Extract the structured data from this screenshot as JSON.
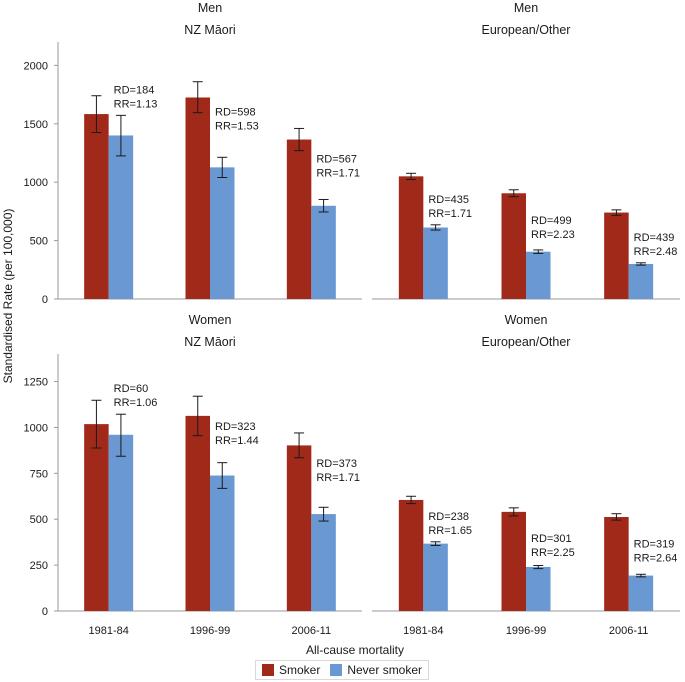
{
  "chart_data": [
    {
      "type": "bar",
      "title": "Men",
      "subtitle": "NZ Māori",
      "categories": [
        "1981-84",
        "1996-99",
        "2006-11"
      ],
      "ylim": [
        0,
        2200
      ],
      "yticks": [
        0,
        500,
        1000,
        1500,
        2000
      ],
      "series": [
        {
          "name": "Smoker",
          "values": [
            1583,
            1725,
            1365
          ],
          "err_low": [
            1425,
            1595,
            1270
          ],
          "err_high": [
            1740,
            1860,
            1460
          ]
        },
        {
          "name": "Never smoker",
          "values": [
            1400,
            1127,
            798
          ],
          "err_low": [
            1225,
            1040,
            745
          ],
          "err_high": [
            1572,
            1213,
            852
          ]
        }
      ],
      "annotations": [
        {
          "rd": "RD=184",
          "rr": "RR=1.13"
        },
        {
          "rd": "RD=598",
          "rr": "RR=1.53"
        },
        {
          "rd": "RD=567",
          "rr": "RR=1.71"
        }
      ]
    },
    {
      "type": "bar",
      "title": "Men",
      "subtitle": "European/Other",
      "categories": [
        "1981-84",
        "1996-99",
        "2006-11"
      ],
      "ylim": [
        0,
        2200
      ],
      "series": [
        {
          "name": "Smoker",
          "values": [
            1050,
            905,
            740
          ],
          "err_low": [
            1023,
            876,
            716
          ],
          "err_high": [
            1076,
            935,
            763
          ]
        },
        {
          "name": "Never smoker",
          "values": [
            612,
            405,
            300
          ],
          "err_low": [
            590,
            390,
            290
          ],
          "err_high": [
            635,
            420,
            310
          ]
        }
      ],
      "annotations": [
        {
          "rd": "RD=435",
          "rr": "RR=1.71"
        },
        {
          "rd": "RD=499",
          "rr": "RR=2.23"
        },
        {
          "rd": "RD=439",
          "rr": "RR=2.48"
        }
      ]
    },
    {
      "type": "bar",
      "title": "Women",
      "subtitle": "NZ Māori",
      "categories": [
        "1981-84",
        "1996-99",
        "2006-11"
      ],
      "ylim": [
        0,
        1400
      ],
      "yticks": [
        0,
        250,
        500,
        750,
        1000,
        1250
      ],
      "series": [
        {
          "name": "Smoker",
          "values": [
            1018,
            1063,
            902
          ],
          "err_low": [
            888,
            955,
            835
          ],
          "err_high": [
            1148,
            1170,
            970
          ]
        },
        {
          "name": "Never smoker",
          "values": [
            960,
            738,
            528
          ],
          "err_low": [
            843,
            668,
            490
          ],
          "err_high": [
            1072,
            808,
            565
          ]
        }
      ],
      "annotations": [
        {
          "rd": "RD=60",
          "rr": "RR=1.06"
        },
        {
          "rd": "RD=323",
          "rr": "RR=1.44"
        },
        {
          "rd": "RD=373",
          "rr": "RR=1.71"
        }
      ]
    },
    {
      "type": "bar",
      "title": "Women",
      "subtitle": "European/Other",
      "categories": [
        "1981-84",
        "1996-99",
        "2006-11"
      ],
      "ylim": [
        0,
        1400
      ],
      "series": [
        {
          "name": "Smoker",
          "values": [
            605,
            540,
            512
          ],
          "err_low": [
            585,
            518,
            495
          ],
          "err_high": [
            625,
            562,
            530
          ]
        },
        {
          "name": "Never smoker",
          "values": [
            367,
            240,
            193
          ],
          "err_low": [
            357,
            231,
            186
          ],
          "err_high": [
            377,
            248,
            200
          ]
        }
      ],
      "annotations": [
        {
          "rd": "RD=238",
          "rr": "RR=1.65"
        },
        {
          "rd": "RD=301",
          "rr": "RR=2.25"
        },
        {
          "rd": "RD=319",
          "rr": "RR=2.64"
        }
      ]
    }
  ],
  "ylabel": "Standardised Rate (per 100,000)",
  "xlabel": "All-cause mortality",
  "legend": [
    {
      "label": "Smoker",
      "color": "#a0291a"
    },
    {
      "label": "Never smoker",
      "color": "#6a98d2"
    }
  ],
  "colors": {
    "smoker": "#a0291a",
    "never_smoker": "#6a98d2",
    "axis": "#999999"
  }
}
